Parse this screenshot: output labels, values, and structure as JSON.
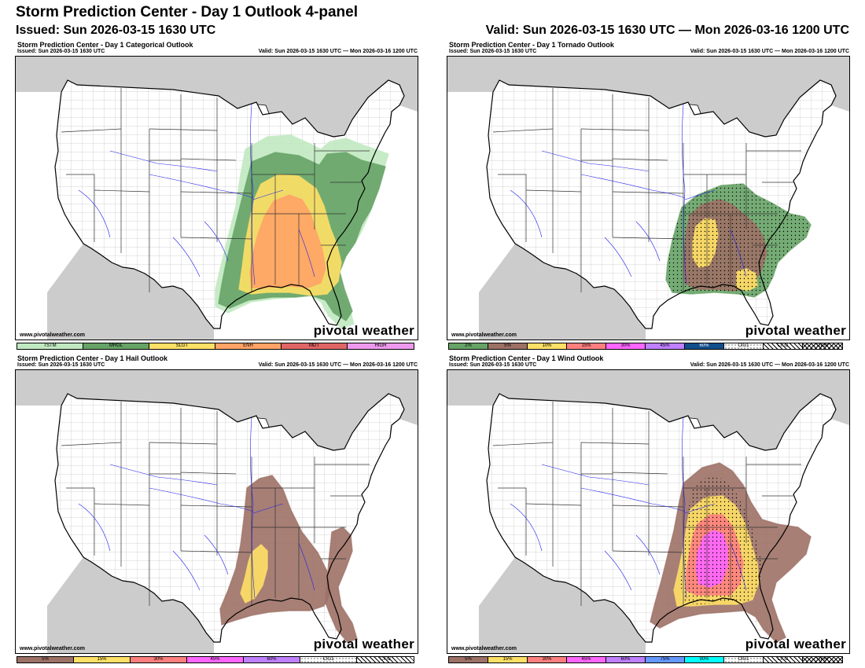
{
  "header": {
    "title": "Storm Prediction Center - Day 1 Outlook 4-panel",
    "issued": "Issued: Sun 2026-03-15 1630 UTC",
    "valid": "Valid: Sun 2026-03-15 1630 UTC — Mon 2026-03-16 1200 UTC"
  },
  "colors": {
    "land": "#ffffff",
    "outside": "#cccccc",
    "water_lines": "#2222ee",
    "borders": "#000000",
    "tstm": "#c1e9c1",
    "mrgl": "#66a366",
    "slgt": "#ffe066",
    "enh": "#ffa366",
    "mdt": "#e06666",
    "high": "#ee99ee",
    "p2": "#66a366",
    "p5": "#9d7166",
    "p10": "#ffe066",
    "p15": "#ff7f7f",
    "p30": "#ff66ff",
    "p45": "#bf80ff",
    "p60": "#104e8b",
    "p75": "#6699ff",
    "p90": "#00ffff"
  },
  "panels": [
    {
      "id": "categorical",
      "title": "Storm Prediction Center - Day 1 Categorical Outlook",
      "issued": "Issued: Sun 2026-03-15 1630 UTC",
      "valid": "Valid: Sun 2026-03-15 1630 UTC — Mon 2026-03-16 1200 UTC",
      "watermark": "www.pivotalweather.com",
      "brand": "pivotal weather",
      "legend": [
        {
          "label": "TSTM",
          "color": "#c1e9c1"
        },
        {
          "label": "MRGL",
          "color": "#66a366"
        },
        {
          "label": "SLGT",
          "color": "#ffe066"
        },
        {
          "label": "ENH",
          "color": "#ffa366"
        },
        {
          "label": "MDT",
          "color": "#e06666"
        },
        {
          "label": "HIGH",
          "color": "#ee99ee"
        }
      ]
    },
    {
      "id": "tornado",
      "title": "Storm Prediction Center - Day 1 Tornado Outlook",
      "issued": "Issued: Sun 2026-03-15 1630 UTC",
      "valid": "Valid: Sun 2026-03-15 1630 UTC — Mon 2026-03-16 1200 UTC",
      "watermark": "www.pivotalweather.com",
      "brand": "pivotal weather",
      "legend": [
        {
          "label": "2%",
          "color": "#66a366"
        },
        {
          "label": "5%",
          "color": "#9d7166"
        },
        {
          "label": "10%",
          "color": "#ffe066"
        },
        {
          "label": "15%",
          "color": "#ff7f7f"
        },
        {
          "label": "30%",
          "color": "#ff66ff"
        },
        {
          "label": "45%",
          "color": "#bf80ff"
        },
        {
          "label": "60%",
          "color": "#104e8b"
        },
        {
          "label": "CIG1",
          "color": "dots"
        },
        {
          "label": "CIG2",
          "color": "hatch"
        },
        {
          "label": "CIG3",
          "color": "cross"
        }
      ]
    },
    {
      "id": "hail",
      "title": "Storm Prediction Center - Day 1 Hail Outlook",
      "issued": "Issued: Sun 2026-03-15 1630 UTC",
      "valid": "Valid: Sun 2026-03-15 1630 UTC — Mon 2026-03-16 1200 UTC",
      "watermark": "www.pivotalweather.com",
      "brand": "pivotal weather",
      "legend": [
        {
          "label": "5%",
          "color": "#9d7166"
        },
        {
          "label": "15%",
          "color": "#ffe066"
        },
        {
          "label": "30%",
          "color": "#ff7f7f"
        },
        {
          "label": "45%",
          "color": "#ff66ff"
        },
        {
          "label": "60%",
          "color": "#bf80ff"
        },
        {
          "label": "CIG1",
          "color": "dots"
        },
        {
          "label": "CIG2",
          "color": "hatch"
        }
      ]
    },
    {
      "id": "wind",
      "title": "Storm Prediction Center - Day 1 Wind Outlook",
      "issued": "Issued: Sun 2026-03-15 1630 UTC",
      "valid": "Valid: Sun 2026-03-15 1630 UTC — Mon 2026-03-16 1200 UTC",
      "watermark": "www.pivotalweather.com",
      "brand": "pivotal weather",
      "legend": [
        {
          "label": "5%",
          "color": "#9d7166"
        },
        {
          "label": "15%",
          "color": "#ffe066"
        },
        {
          "label": "30%",
          "color": "#ff7f7f"
        },
        {
          "label": "45%",
          "color": "#ff66ff"
        },
        {
          "label": "60%",
          "color": "#bf80ff"
        },
        {
          "label": "75%",
          "color": "#6699ff"
        },
        {
          "label": "90%",
          "color": "#00ffff"
        },
        {
          "label": "CIG1",
          "color": "dots"
        },
        {
          "label": "CIG2",
          "color": "hatch"
        },
        {
          "label": "CIG3",
          "color": "cross"
        }
      ]
    }
  ]
}
